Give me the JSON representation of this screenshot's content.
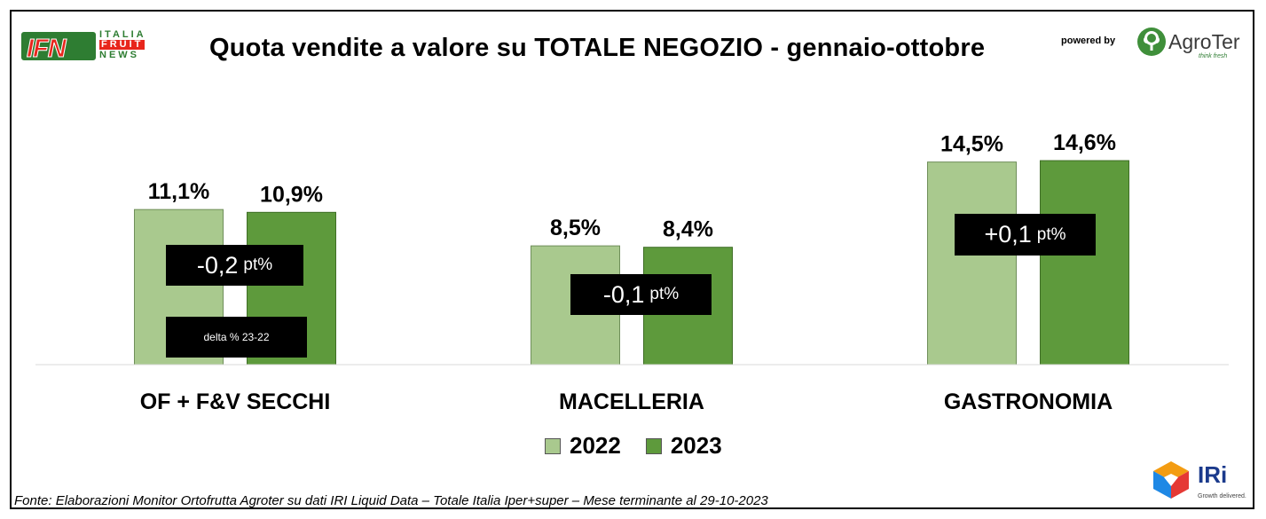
{
  "title": "Quota vendite a valore su TOTALE NEGOZIO - gennaio-ottobre",
  "powered_by": "powered by",
  "logos": {
    "ifn": {
      "main": "IFN",
      "line1": "ITALIA",
      "line2": "FRUIT",
      "line3": "NEWS"
    },
    "agroter": {
      "name": "AgroTer",
      "tagline": "think fresh"
    },
    "iri": {
      "name": "IRi",
      "tagline": "Growth delivered."
    }
  },
  "colors": {
    "series_2022": "#a9c98e",
    "series_2023": "#5e9a3c",
    "delta_box": "#000000"
  },
  "chart_data": {
    "type": "bar",
    "title": "Quota vendite a valore su TOTALE NEGOZIO - gennaio-ottobre",
    "categories": [
      "OF + F&V SECCHI",
      "MACELLERIA",
      "GASTRONOMIA"
    ],
    "series": [
      {
        "name": "2022",
        "values": [
          11.1,
          8.5,
          14.5
        ],
        "labels": [
          "11,1%",
          "8,5%",
          "14,5%"
        ]
      },
      {
        "name": "2023",
        "values": [
          10.9,
          8.4,
          14.6
        ],
        "labels": [
          "10,9%",
          "8,4%",
          "14,6%"
        ]
      }
    ],
    "deltas": [
      {
        "value": "-0,2",
        "unit": "pt%"
      },
      {
        "value": "-0,1",
        "unit": "pt%"
      },
      {
        "value": "+0,1",
        "unit": "pt%"
      }
    ],
    "delta_note": "delta % 23-22",
    "legend_position": "bottom",
    "grid": false,
    "ylim": [
      0,
      16
    ]
  },
  "source": "Fonte: Elaborazioni Monitor Ortofrutta Agroter su dati IRI Liquid Data – Totale Italia Iper+super – Mese terminante al 29-10-2023"
}
